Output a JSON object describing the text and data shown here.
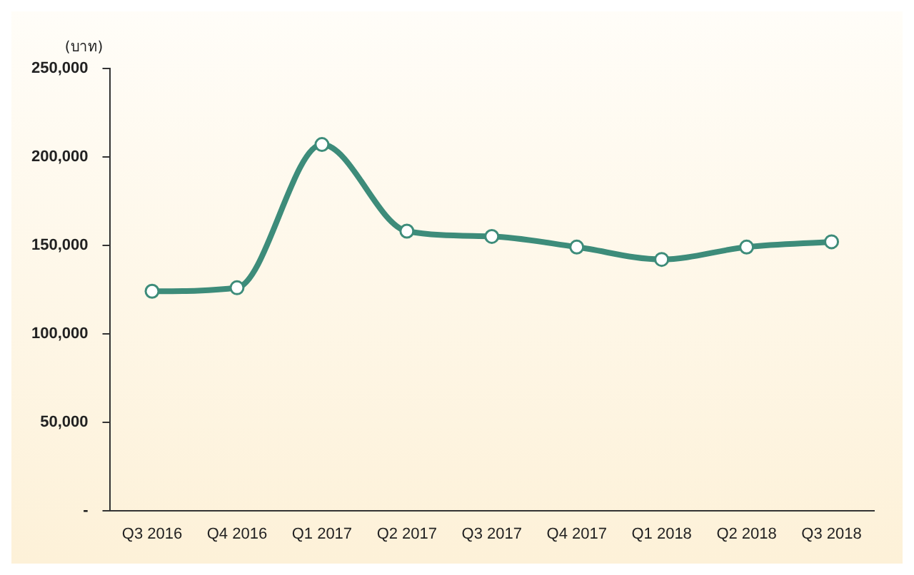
{
  "chart_data": {
    "type": "line",
    "ylabel": "(บาท)",
    "categories": [
      "Q3 2016",
      "Q4 2016",
      "Q1 2017",
      "Q2 2017",
      "Q3 2017",
      "Q4 2017",
      "Q1 2018",
      "Q2 2018",
      "Q3 2018"
    ],
    "series": [
      {
        "color": "#3d8c7a",
        "values": [
          124000,
          126000,
          207000,
          158000,
          155000,
          149000,
          142000,
          149000,
          152000
        ]
      }
    ],
    "ylim": [
      0,
      250000
    ],
    "yticks": [
      {
        "value": 0,
        "label": "-"
      },
      {
        "value": 50000,
        "label": "50,000"
      },
      {
        "value": 100000,
        "label": "100,000"
      },
      {
        "value": 150000,
        "label": "150,000"
      },
      {
        "value": 200000,
        "label": "200,000"
      },
      {
        "value": 250000,
        "label": "250,000"
      }
    ],
    "grid": false,
    "legend": false,
    "marker": "circle",
    "line_style": "solid"
  }
}
